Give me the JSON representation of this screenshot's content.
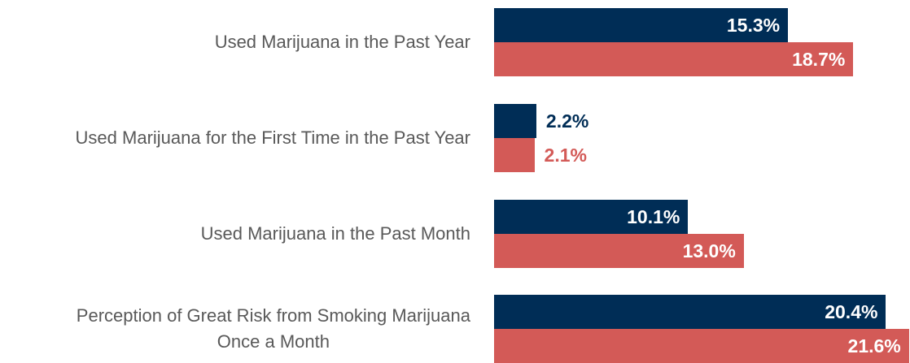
{
  "chart_data": {
    "type": "bar",
    "orientation": "horizontal",
    "categories": [
      "Used Marijuana in the Past Year",
      "Used Marijuana for the First Time in the Past Year",
      "Used Marijuana in the Past Month",
      "Perception of Great Risk from Smoking Marijuana\nOnce a Month"
    ],
    "series": [
      {
        "color": "#002d56",
        "values": [
          15.3,
          2.2,
          10.1,
          20.4
        ],
        "value_labels": [
          "15.3%",
          "2.2%",
          "10.1%",
          "20.4%"
        ]
      },
      {
        "color": "#d35a57",
        "values": [
          18.7,
          2.1,
          13.0,
          21.6
        ],
        "value_labels": [
          "18.7%",
          "2.1%",
          "13.0%",
          "21.6%"
        ]
      }
    ]
  }
}
